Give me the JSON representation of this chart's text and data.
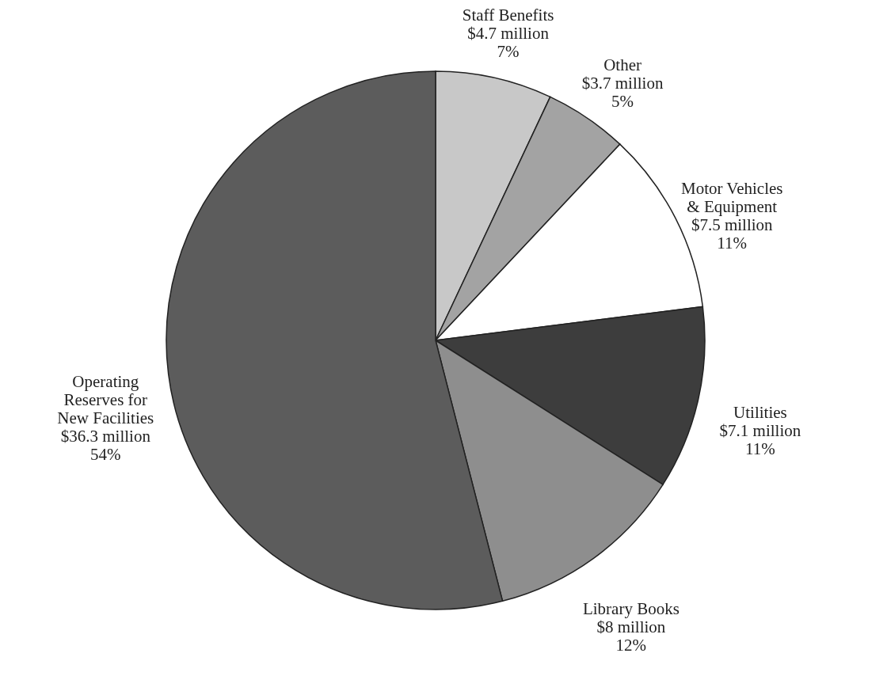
{
  "chart_data": {
    "type": "pie",
    "categories": [
      "Staff Benefits",
      "Other",
      "Motor Vehicles & Equipment",
      "Utilities",
      "Library Books",
      "Operating Reserves for New Facilities"
    ],
    "values": [
      7,
      5,
      11,
      11,
      12,
      54
    ],
    "value_labels": [
      "$4.7 million\n7%",
      "$3.7 million\n5%",
      "$7.5 million\n11%",
      "$7.1 million\n11%",
      "$8 million\n12%",
      "$36.3 million\n54%"
    ],
    "colors": [
      "#c8c8c8",
      "#a3a3a3",
      "#ffffff",
      "#3d3d3d",
      "#8e8e8e",
      "#5c5c5c"
    ],
    "legend": false
  }
}
